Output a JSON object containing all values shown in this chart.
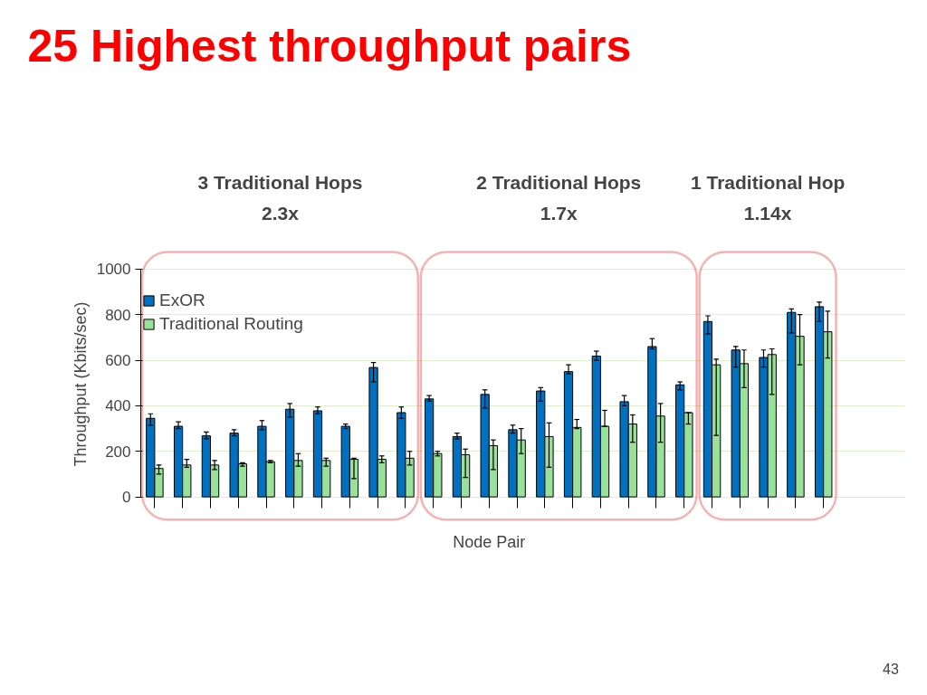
{
  "chart_data": {
    "type": "bar",
    "title": "25 Highest throughput pairs",
    "xlabel": "Node Pair",
    "ylabel": "Throughput (Kbits/sec)",
    "categories": [
      null,
      null,
      null,
      null,
      null,
      null,
      null,
      null,
      null,
      null,
      null,
      null,
      null,
      null,
      null,
      null,
      null,
      null,
      null,
      null,
      null,
      null,
      null,
      null,
      null
    ],
    "ylim": [
      0,
      1000
    ],
    "yticks": [
      0,
      200,
      400,
      600,
      800,
      1000
    ],
    "grid": "y",
    "legend": "top left",
    "series": [
      {
        "name": "ExOR",
        "color": "#0070c0",
        "values": [
          345,
          310,
          268,
          280,
          310,
          385,
          378,
          310,
          568,
          370,
          430,
          265,
          450,
          295,
          465,
          550,
          618,
          418,
          660,
          492,
          770,
          645,
          612,
          810,
          835
        ],
        "errors": [
          [
            315,
            365
          ],
          [
            300,
            330
          ],
          [
            255,
            285
          ],
          [
            268,
            295
          ],
          [
            295,
            335
          ],
          [
            350,
            410
          ],
          [
            365,
            395
          ],
          [
            300,
            320
          ],
          [
            505,
            590
          ],
          [
            345,
            395
          ],
          [
            420,
            445
          ],
          [
            255,
            280
          ],
          [
            390,
            470
          ],
          [
            280,
            315
          ],
          [
            420,
            480
          ],
          [
            540,
            580
          ],
          [
            600,
            640
          ],
          [
            400,
            445
          ],
          [
            650,
            695
          ],
          [
            470,
            505
          ],
          [
            715,
            795
          ],
          [
            570,
            660
          ],
          [
            570,
            645
          ],
          [
            720,
            825
          ],
          [
            770,
            855
          ]
        ]
      },
      {
        "name": "Traditional Routing",
        "color": "#99e09a",
        "values": [
          125,
          140,
          140,
          145,
          155,
          160,
          160,
          165,
          165,
          170,
          190,
          185,
          225,
          250,
          265,
          305,
          310,
          320,
          355,
          370,
          580,
          585,
          625,
          705,
          725
        ],
        "errors": [
          [
            100,
            140
          ],
          [
            130,
            165
          ],
          [
            120,
            160
          ],
          [
            135,
            150
          ],
          [
            150,
            160
          ],
          [
            135,
            190
          ],
          [
            135,
            170
          ],
          [
            80,
            170
          ],
          [
            150,
            180
          ],
          [
            140,
            200
          ],
          [
            180,
            200
          ],
          [
            85,
            210
          ],
          [
            120,
            250
          ],
          [
            190,
            300
          ],
          [
            130,
            325
          ],
          [
            300,
            340
          ],
          [
            310,
            380
          ],
          [
            240,
            360
          ],
          [
            240,
            410
          ],
          [
            320,
            370
          ],
          [
            270,
            605
          ],
          [
            480,
            645
          ],
          [
            450,
            650
          ],
          [
            580,
            800
          ],
          [
            610,
            815
          ]
        ]
      }
    ],
    "annotations": [
      "3 Traditional Hops\n2.3x",
      "2 Traditional Hops\n1.7x",
      "1 Traditional Hop\n1.14x",
      "43"
    ]
  }
}
